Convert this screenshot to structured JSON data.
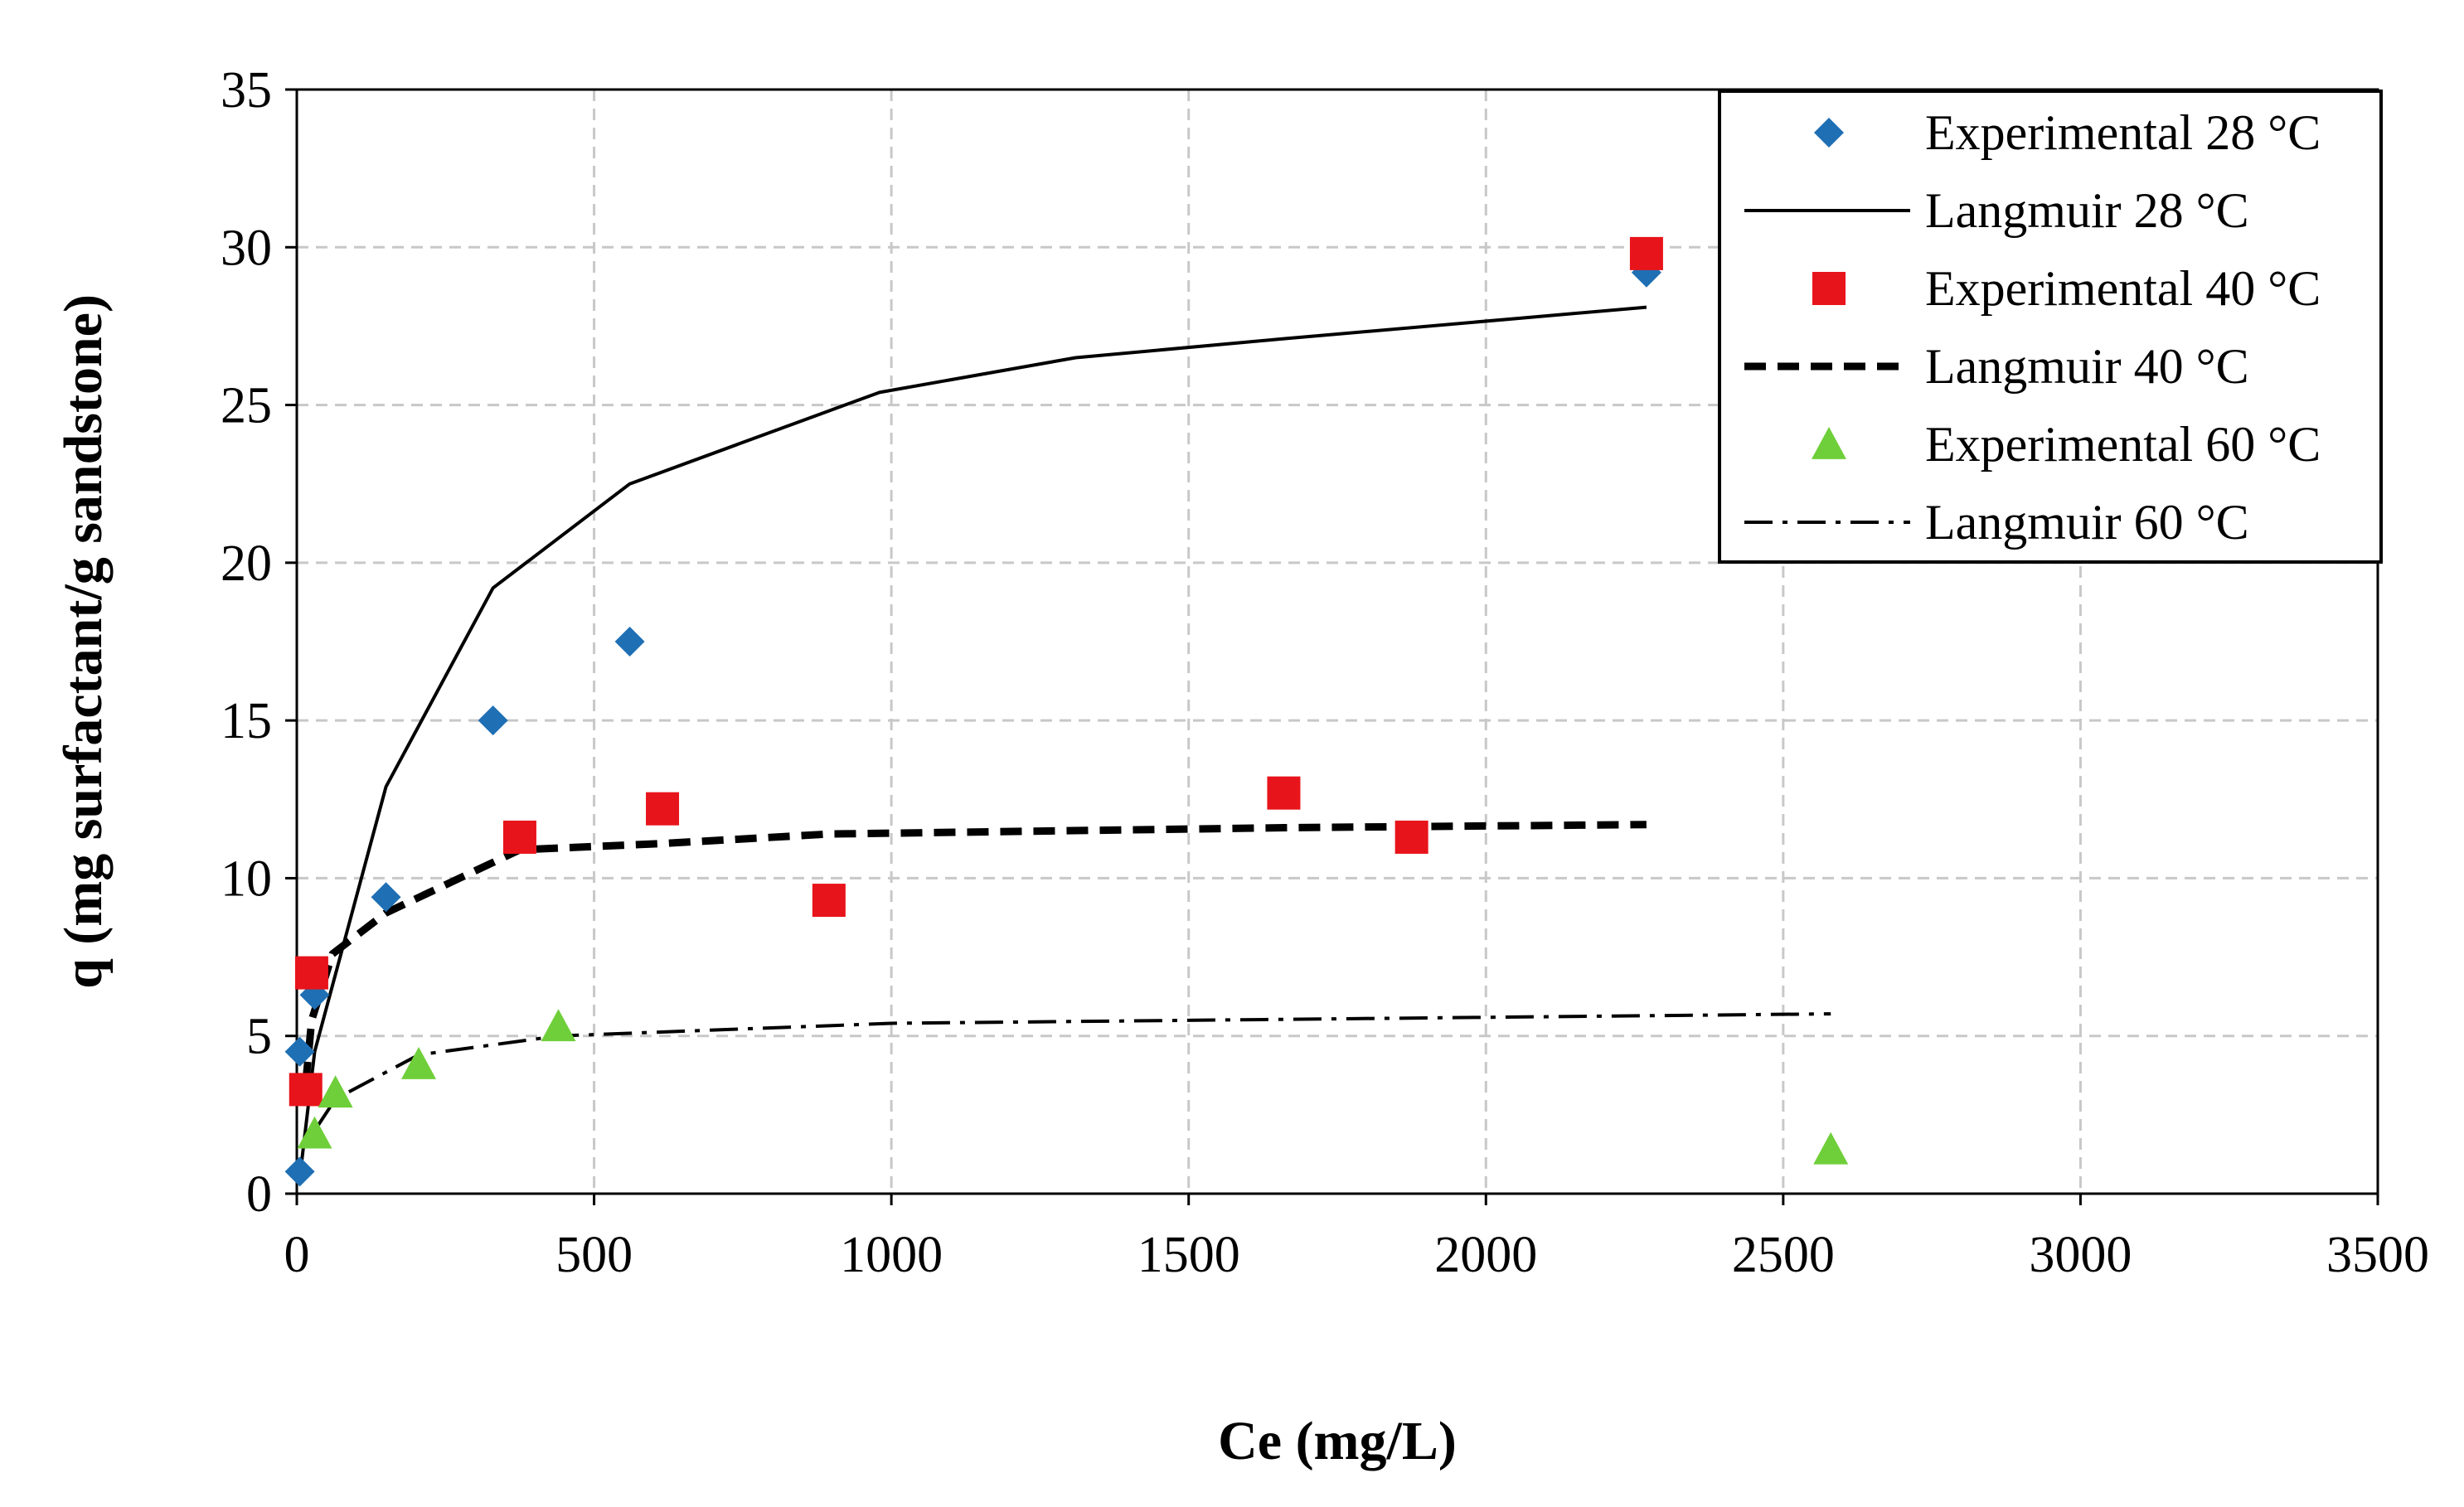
{
  "chart_data": {
    "type": "scatter",
    "title": "",
    "xlabel": "Ce (mg/L)",
    "ylabel": "q (mg surfactant/g sandstone)",
    "xlim": [
      0,
      3500
    ],
    "ylim": [
      0,
      35
    ],
    "x_ticks": [
      0,
      500,
      1000,
      1500,
      2000,
      2500,
      3000,
      3500
    ],
    "y_ticks": [
      0,
      5,
      10,
      15,
      20,
      25,
      30,
      35
    ],
    "grid": true,
    "legend_position": "top-right",
    "series": [
      {
        "name": "Experimental 28 °C",
        "kind": "markers",
        "marker": "diamond",
        "color": "#1f6fb4",
        "points": [
          [
            5,
            0.7
          ],
          [
            5,
            4.5
          ],
          [
            30,
            6.3
          ],
          [
            150,
            9.4
          ],
          [
            330,
            15.0
          ],
          [
            560,
            17.5
          ],
          [
            2270,
            29.2
          ]
        ]
      },
      {
        "name": "Langmuir 28 °C",
        "kind": "line",
        "dash": "solid",
        "color": "#000000",
        "points": [
          [
            5,
            0.5
          ],
          [
            30,
            4.5
          ],
          [
            150,
            12.9
          ],
          [
            330,
            19.2
          ],
          [
            560,
            22.5
          ],
          [
            980,
            25.4
          ],
          [
            1310,
            26.5
          ],
          [
            1660,
            27.1
          ],
          [
            2270,
            28.1
          ]
        ]
      },
      {
        "name": "Experimental 40 °C",
        "kind": "markers",
        "marker": "square",
        "color": "#e8141b",
        "points": [
          [
            15,
            3.3
          ],
          [
            25,
            7.0
          ],
          [
            375,
            11.3
          ],
          [
            615,
            12.2
          ],
          [
            895,
            9.3
          ],
          [
            1660,
            12.7
          ],
          [
            1875,
            11.3
          ],
          [
            2270,
            29.8
          ]
        ]
      },
      {
        "name": "Langmuir 40 °C",
        "kind": "line",
        "dash": "dashed",
        "color": "#000000",
        "points": [
          [
            15,
            3.5
          ],
          [
            25,
            5.5
          ],
          [
            60,
            7.6
          ],
          [
            150,
            8.9
          ],
          [
            375,
            10.9
          ],
          [
            615,
            11.1
          ],
          [
            895,
            11.4
          ],
          [
            1660,
            11.6
          ],
          [
            2270,
            11.7
          ]
        ]
      },
      {
        "name": "Experimental 60 °C",
        "kind": "markers",
        "marker": "triangle",
        "color": "#6fcf3a",
        "points": [
          [
            30,
            1.9
          ],
          [
            65,
            3.2
          ],
          [
            205,
            4.1
          ],
          [
            440,
            5.3
          ],
          [
            2580,
            1.4
          ]
        ]
      },
      {
        "name": "Langmuir 60 °C",
        "kind": "line",
        "dash": "dashdot",
        "color": "#000000",
        "points": [
          [
            30,
            2.0
          ],
          [
            65,
            3.0
          ],
          [
            205,
            4.4
          ],
          [
            440,
            5.0
          ],
          [
            1000,
            5.4
          ],
          [
            2580,
            5.7
          ]
        ]
      }
    ]
  }
}
